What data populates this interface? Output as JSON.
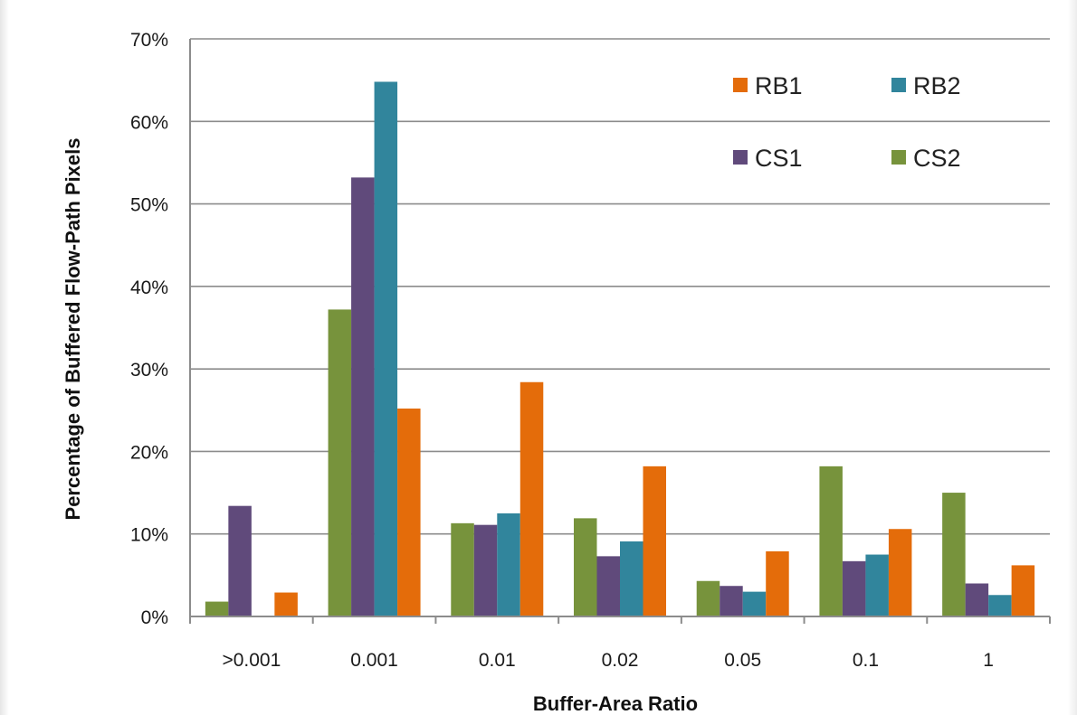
{
  "chart_data": {
    "type": "bar",
    "title": "",
    "xlabel": "Buffer-Area Ratio",
    "ylabel": "Percentage of Buffered Flow-Path Pixels",
    "ylim": [
      0,
      70
    ],
    "yticks": [
      "0%",
      "10%",
      "20%",
      "30%",
      "40%",
      "50%",
      "60%",
      "70%"
    ],
    "grid": true,
    "legend_position": "top-right",
    "categories": [
      ">0.001",
      "0.001",
      "0.01",
      "0.02",
      "0.05",
      "0.1",
      "1"
    ],
    "series": [
      {
        "name": "CS2",
        "color": "#77933c",
        "values": [
          1.8,
          37.2,
          11.3,
          11.9,
          4.3,
          18.2,
          15.0
        ]
      },
      {
        "name": "CS1",
        "color": "#604a7b",
        "values": [
          13.4,
          53.2,
          11.1,
          7.3,
          3.7,
          6.7,
          4.0
        ]
      },
      {
        "name": "RB2",
        "color": "#31859c",
        "values": [
          0,
          64.8,
          12.5,
          9.1,
          3.0,
          7.5,
          2.6
        ]
      },
      {
        "name": "RB1",
        "color": "#e46c0a",
        "values": [
          2.9,
          25.2,
          28.4,
          18.2,
          7.9,
          10.6,
          6.2
        ]
      }
    ],
    "legend_order": [
      "RB1",
      "RB2",
      "CS1",
      "CS2"
    ]
  }
}
